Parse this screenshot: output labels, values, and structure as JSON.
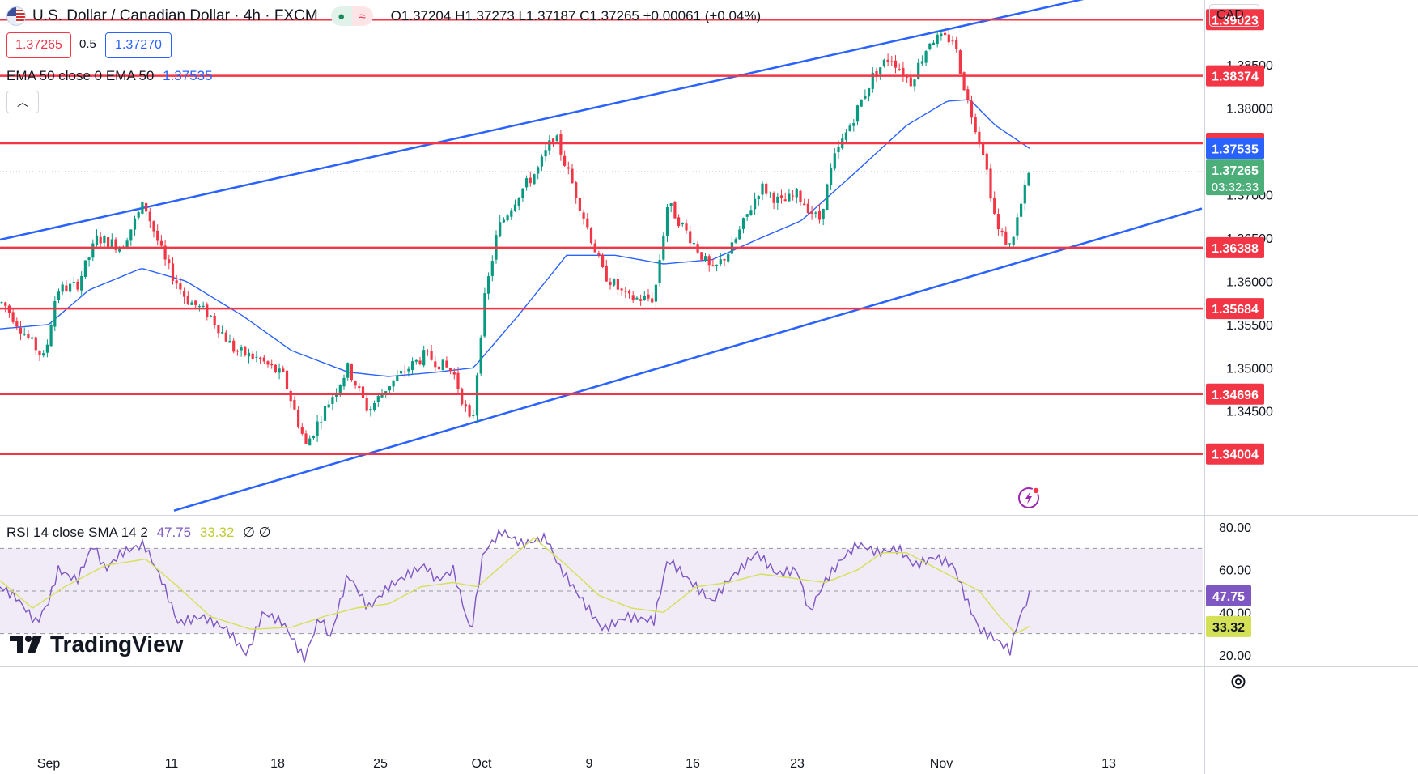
{
  "header": {
    "symbol": "U.S. Dollar / Canadian Dollar · 4h · FXCM",
    "ohlc": "O1.37204 H1.37273 L1.37187 C1.37265 +0.00061 (+0.04%)",
    "bid": "1.37265",
    "spread": "0.5",
    "ask": "1.37270",
    "currency": "CAD"
  },
  "legends": {
    "ema": "EMA 50 close 0 EMA 50",
    "ema_value": "1.37535",
    "rsi": "RSI 14 close SMA 14 2",
    "rsi_value": "47.75",
    "rsi_sma_value": "33.32",
    "rsi_extra": "∅ ∅"
  },
  "brand": "TradingView",
  "colors": {
    "up": "#089981",
    "down": "#f23645",
    "level": "#f23645",
    "channel": "#2962ff",
    "ema": "#2962ff",
    "rsi": "#7e57c2",
    "rsi_sma": "#d4e157",
    "rsi_band": "#ede7f6",
    "last_price": "#4caf7a"
  },
  "chart_data": [
    {
      "type": "candlestick",
      "timeframe": "4h",
      "x_ticks": [
        "Sep",
        "11",
        "18",
        "25",
        "Oct",
        "9",
        "16",
        "23",
        "Nov",
        "13"
      ],
      "y_ticks": [
        "1.34500",
        "1.35000",
        "1.35500",
        "1.36000",
        "1.36500",
        "1.37000",
        "1.38000",
        "1.38500"
      ],
      "ylim": [
        1.333,
        1.3925
      ],
      "last_price": 1.37265,
      "countdown": "03:32:33",
      "levels": [
        1.39023,
        1.38374,
        1.37594,
        1.36388,
        1.35684,
        1.34696,
        1.34004
      ],
      "ema_last": 1.37535,
      "channel_upper": [
        [
          0,
          1.3648
        ],
        [
          1430,
          1.3945
        ]
      ],
      "channel_lower": [
        [
          215,
          1.3335
        ],
        [
          1485,
          1.3684
        ]
      ],
      "anchors": [
        [
          4,
          1.3575
        ],
        [
          30,
          1.354
        ],
        [
          55,
          1.351
        ],
        [
          70,
          1.359
        ],
        [
          95,
          1.3595
        ],
        [
          120,
          1.365
        ],
        [
          150,
          1.364
        ],
        [
          178,
          1.369
        ],
        [
          205,
          1.362
        ],
        [
          230,
          1.358
        ],
        [
          260,
          1.356
        ],
        [
          290,
          1.352
        ],
        [
          320,
          1.351
        ],
        [
          350,
          1.349
        ],
        [
          378,
          1.341
        ],
        [
          400,
          1.345
        ],
        [
          430,
          1.35
        ],
        [
          455,
          1.345
        ],
        [
          480,
          1.348
        ],
        [
          505,
          1.35
        ],
        [
          525,
          1.3515
        ],
        [
          560,
          1.3495
        ],
        [
          583,
          1.343
        ],
        [
          597,
          1.357
        ],
        [
          615,
          1.366
        ],
        [
          640,
          1.37
        ],
        [
          665,
          1.373
        ],
        [
          685,
          1.377
        ],
        [
          712,
          1.37
        ],
        [
          745,
          1.361
        ],
        [
          775,
          1.358
        ],
        [
          808,
          1.358
        ],
        [
          825,
          1.369
        ],
        [
          860,
          1.364
        ],
        [
          880,
          1.361
        ],
        [
          905,
          1.364
        ],
        [
          940,
          1.371
        ],
        [
          965,
          1.369
        ],
        [
          985,
          1.37
        ],
        [
          1012,
          1.367
        ],
        [
          1030,
          1.374
        ],
        [
          1060,
          1.38
        ],
        [
          1080,
          1.384
        ],
        [
          1100,
          1.386
        ],
        [
          1125,
          1.383
        ],
        [
          1150,
          1.388
        ],
        [
          1178,
          1.388
        ],
        [
          1195,
          1.381
        ],
        [
          1215,
          1.375
        ],
        [
          1232,
          1.366
        ],
        [
          1248,
          1.364
        ],
        [
          1262,
          1.369
        ],
        [
          1272,
          1.37265
        ]
      ],
      "ema_anchors": [
        [
          0,
          1.3545
        ],
        [
          60,
          1.355
        ],
        [
          110,
          1.359
        ],
        [
          175,
          1.3615
        ],
        [
          230,
          1.36
        ],
        [
          300,
          1.356
        ],
        [
          360,
          1.352
        ],
        [
          430,
          1.3495
        ],
        [
          480,
          1.349
        ],
        [
          540,
          1.3495
        ],
        [
          585,
          1.35
        ],
        [
          640,
          1.356
        ],
        [
          700,
          1.363
        ],
        [
          760,
          1.363
        ],
        [
          820,
          1.362
        ],
        [
          880,
          1.3625
        ],
        [
          940,
          1.365
        ],
        [
          990,
          1.367
        ],
        [
          1050,
          1.372
        ],
        [
          1120,
          1.378
        ],
        [
          1170,
          1.3808
        ],
        [
          1198,
          1.381
        ],
        [
          1230,
          1.378
        ],
        [
          1272,
          1.37535
        ]
      ]
    },
    {
      "type": "line",
      "title": "RSI 14 close SMA 14 2",
      "ylim": [
        15,
        85
      ],
      "y_ticks": [
        "20.00",
        "40.00",
        "60.00",
        "80.00"
      ],
      "band": [
        30,
        70
      ],
      "midline": 50,
      "series": [
        {
          "name": "RSI",
          "values": [
            [
              0,
              52
            ],
            [
              20,
              47
            ],
            [
              45,
              35
            ],
            [
              60,
              45
            ],
            [
              72,
              60
            ],
            [
              95,
              55
            ],
            [
              115,
              72
            ],
            [
              130,
              60
            ],
            [
              150,
              68
            ],
            [
              178,
              72
            ],
            [
              200,
              55
            ],
            [
              220,
              35
            ],
            [
              250,
              38
            ],
            [
              280,
              32
            ],
            [
              305,
              20
            ],
            [
              325,
              40
            ],
            [
              350,
              35
            ],
            [
              376,
              18
            ],
            [
              395,
              38
            ],
            [
              408,
              28
            ],
            [
              430,
              58
            ],
            [
              455,
              42
            ],
            [
              480,
              52
            ],
            [
              505,
              58
            ],
            [
              525,
              62
            ],
            [
              540,
              55
            ],
            [
              560,
              60
            ],
            [
              582,
              30
            ],
            [
              597,
              68
            ],
            [
              620,
              78
            ],
            [
              645,
              72
            ],
            [
              675,
              75
            ],
            [
              690,
              62
            ],
            [
              715,
              48
            ],
            [
              745,
              32
            ],
            [
              775,
              38
            ],
            [
              808,
              36
            ],
            [
              825,
              65
            ],
            [
              860,
              52
            ],
            [
              880,
              45
            ],
            [
              900,
              55
            ],
            [
              935,
              68
            ],
            [
              960,
              58
            ],
            [
              985,
              60
            ],
            [
              1000,
              40
            ],
            [
              1020,
              55
            ],
            [
              1040,
              65
            ],
            [
              1060,
              72
            ],
            [
              1085,
              68
            ],
            [
              1110,
              70
            ],
            [
              1130,
              62
            ],
            [
              1155,
              66
            ],
            [
              1178,
              62
            ],
            [
              1195,
              45
            ],
            [
              1210,
              32
            ],
            [
              1228,
              28
            ],
            [
              1248,
              22
            ],
            [
              1258,
              36
            ],
            [
              1272,
              48
            ]
          ]
        },
        {
          "name": "SMA",
          "values": [
            [
              0,
              55
            ],
            [
              40,
              42
            ],
            [
              80,
              52
            ],
            [
              130,
              62
            ],
            [
              180,
              65
            ],
            [
              220,
              52
            ],
            [
              260,
              38
            ],
            [
              310,
              32
            ],
            [
              360,
              33
            ],
            [
              400,
              38
            ],
            [
              440,
              42
            ],
            [
              480,
              44
            ],
            [
              520,
              52
            ],
            [
              560,
              54
            ],
            [
              590,
              52
            ],
            [
              620,
              62
            ],
            [
              660,
              75
            ],
            [
              700,
              62
            ],
            [
              740,
              48
            ],
            [
              780,
              42
            ],
            [
              820,
              40
            ],
            [
              860,
              52
            ],
            [
              900,
              54
            ],
            [
              940,
              58
            ],
            [
              980,
              56
            ],
            [
              1020,
              54
            ],
            [
              1060,
              60
            ],
            [
              1090,
              68
            ],
            [
              1120,
              68
            ],
            [
              1150,
              62
            ],
            [
              1180,
              56
            ],
            [
              1210,
              50
            ],
            [
              1235,
              38
            ],
            [
              1255,
              30
            ],
            [
              1272,
              33.32
            ]
          ]
        }
      ]
    }
  ]
}
